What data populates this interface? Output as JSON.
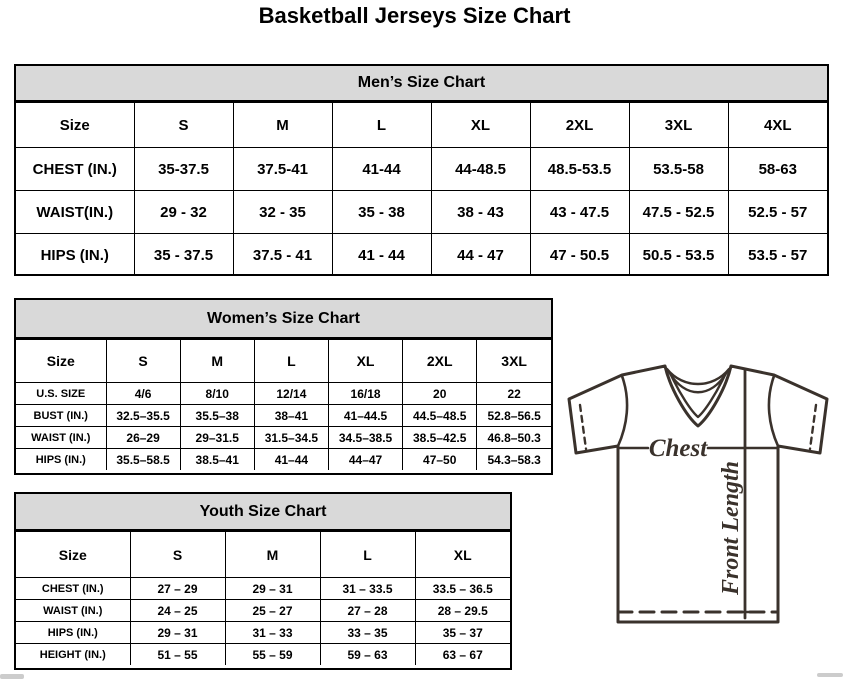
{
  "page_title": "Basketball Jerseys Size Chart",
  "tables": {
    "men": {
      "title": "Men’s Size Chart",
      "size_label": "Size",
      "columns": [
        "S",
        "M",
        "L",
        "XL",
        "2XL",
        "3XL",
        "4XL"
      ],
      "rows": [
        {
          "label": "CHEST (IN.)",
          "values": [
            "35-37.5",
            "37.5-41",
            "41-44",
            "44-48.5",
            "48.5-53.5",
            "53.5-58",
            "58-63"
          ]
        },
        {
          "label": "WAIST(IN.)",
          "values": [
            "29 - 32",
            "32 - 35",
            "35 - 38",
            "38 - 43",
            "43 - 47.5",
            "47.5 - 52.5",
            "52.5 - 57"
          ]
        },
        {
          "label": "HIPS (IN.)",
          "values": [
            "35 - 37.5",
            "37.5 - 41",
            "41 - 44",
            "44 - 47",
            "47 - 50.5",
            "50.5 - 53.5",
            "53.5 - 57"
          ]
        }
      ]
    },
    "women": {
      "title": "Women’s Size Chart",
      "size_label": "Size",
      "columns": [
        "S",
        "M",
        "L",
        "XL",
        "2XL",
        "3XL"
      ],
      "rows": [
        {
          "label": "U.S. SIZE",
          "values": [
            "4/6",
            "8/10",
            "12/14",
            "16/18",
            "20",
            "22"
          ]
        },
        {
          "label": "BUST (IN.)",
          "values": [
            "32.5–35.5",
            "35.5–38",
            "38–41",
            "41–44.5",
            "44.5–48.5",
            "52.8–56.5"
          ]
        },
        {
          "label": "WAIST (IN.)",
          "values": [
            "26–29",
            "29–31.5",
            "31.5–34.5",
            "34.5–38.5",
            "38.5–42.5",
            "46.8–50.3"
          ]
        },
        {
          "label": "HIPS (IN.)",
          "values": [
            "35.5–58.5",
            "38.5–41",
            "41–44",
            "44–47",
            "47–50",
            "54.3–58.3"
          ]
        }
      ]
    },
    "youth": {
      "title": "Youth Size Chart",
      "size_label": "Size",
      "columns": [
        "S",
        "M",
        "L",
        "XL"
      ],
      "rows": [
        {
          "label": "CHEST (IN.)",
          "values": [
            "27 – 29",
            "29 – 31",
            "31 – 33.5",
            "33.5 – 36.5"
          ]
        },
        {
          "label": "WAIST (IN.)",
          "values": [
            "24 – 25",
            "25 – 27",
            "27 – 28",
            "28 – 29.5"
          ]
        },
        {
          "label": "HIPS (IN.)",
          "values": [
            "29 – 31",
            "31 – 33",
            "33 – 35",
            "35 – 37"
          ]
        },
        {
          "label": "HEIGHT (IN.)",
          "values": [
            "51 – 55",
            "55 – 59",
            "59 – 63",
            "63 – 67"
          ]
        }
      ]
    }
  },
  "diagram": {
    "chest_label": "Chest",
    "front_length_label": "Front Length",
    "line_color": "#3a322c"
  },
  "colors": {
    "table_header_bg": "#d9d9d9",
    "border": "#000000"
  }
}
